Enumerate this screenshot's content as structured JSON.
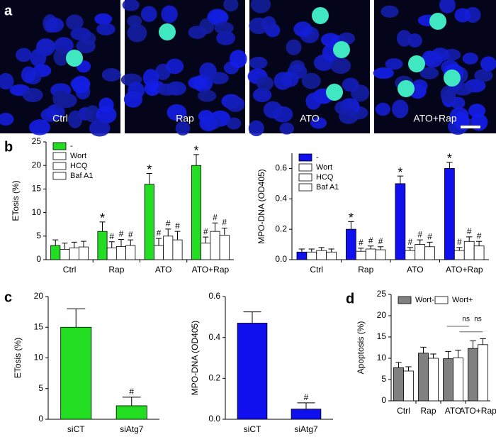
{
  "figure_a": {
    "panel": "a",
    "images": [
      "Ctrl",
      "Rap",
      "ATO",
      "ATO+Rap"
    ]
  },
  "chart_data": [
    {
      "type": "bar",
      "panel": "b",
      "ylabel": "ETosis (%)",
      "categories": [
        "Ctrl",
        "Rap",
        "ATO",
        "ATO+Rap"
      ],
      "ylim": [
        0,
        25
      ],
      "yticks": [
        0,
        5,
        10,
        15,
        20,
        25
      ],
      "legend": "top-left",
      "series": [
        {
          "name": "-",
          "color": "#22dd22",
          "values": [
            3,
            6,
            16,
            20
          ],
          "errors": [
            1.2,
            2,
            2.3,
            2.3
          ],
          "markers": [
            null,
            "*",
            "*",
            "*"
          ]
        },
        {
          "name": "Wort",
          "color": "#ffffff",
          "values": [
            2.2,
            2.5,
            3,
            3.5
          ],
          "errors": [
            1.3,
            1.3,
            1.5,
            1.3
          ],
          "markers": [
            null,
            "#",
            "#",
            "#"
          ]
        },
        {
          "name": "HCQ",
          "color": "#ffffff",
          "values": [
            2.5,
            2.8,
            5,
            6
          ],
          "errors": [
            1.2,
            1.5,
            1.5,
            1.8
          ],
          "markers": [
            null,
            "#",
            "#",
            "#"
          ]
        },
        {
          "name": "Baf A1",
          "color": "#ffffff",
          "values": [
            2.7,
            3,
            4.2,
            5.2
          ],
          "errors": [
            1.2,
            1.2,
            1.8,
            1.5
          ],
          "markers": [
            null,
            "#",
            "#",
            "#"
          ]
        }
      ]
    },
    {
      "type": "bar",
      "ylabel": "MPO-DNA (OD405)",
      "categories": [
        "Ctrl",
        "Rap",
        "ATO",
        "ATO+Rap"
      ],
      "ylim": [
        0,
        0.7
      ],
      "yticks": [
        {
          "value": 0,
          "label": "0.0"
        },
        0.2,
        0.4,
        0.6
      ],
      "legend": "top-left",
      "series": [
        {
          "name": "-",
          "color": "#1010ee",
          "values": [
            0.05,
            0.2,
            0.5,
            0.6
          ],
          "errors": [
            0.02,
            0.05,
            0.05,
            0.04
          ],
          "markers": [
            null,
            "*",
            "*",
            "*"
          ]
        },
        {
          "name": "Wort",
          "color": "#ffffff",
          "values": [
            0.05,
            0.055,
            0.06,
            0.06
          ],
          "errors": [
            0.02,
            0.02,
            0.02,
            0.02
          ],
          "markers": [
            null,
            "#",
            "#",
            "#"
          ]
        },
        {
          "name": "HCQ",
          "color": "#ffffff",
          "values": [
            0.06,
            0.07,
            0.1,
            0.12
          ],
          "errors": [
            0.02,
            0.02,
            0.03,
            0.03
          ],
          "markers": [
            null,
            "#",
            "#",
            "#"
          ]
        },
        {
          "name": "Baf A1",
          "color": "#ffffff",
          "values": [
            0.05,
            0.065,
            0.085,
            0.09
          ],
          "errors": [
            0.02,
            0.02,
            0.03,
            0.03
          ],
          "markers": [
            null,
            "#",
            "#",
            "#"
          ]
        }
      ]
    },
    {
      "type": "bar",
      "panel": "c",
      "ylabel": "ETosis (%)",
      "categories": [
        "siCT",
        "siAtg7"
      ],
      "ylim": [
        0,
        20
      ],
      "yticks": [
        0,
        5,
        10,
        15,
        20
      ],
      "series": [
        {
          "color": "#22dd22",
          "values": [
            15,
            2.2
          ],
          "errors": [
            3,
            1.4
          ],
          "markers": [
            null,
            "#"
          ]
        }
      ]
    },
    {
      "type": "bar",
      "ylabel": "MPO-DNA (OD405)",
      "categories": [
        "siCT",
        "siAtg7"
      ],
      "ylim": [
        0,
        0.6
      ],
      "yticks": [
        {
          "value": 0,
          "label": "0.0"
        },
        0.2,
        0.4,
        0.6
      ],
      "series": [
        {
          "color": "#1010ee",
          "values": [
            0.47,
            0.05
          ],
          "errors": [
            0.055,
            0.03
          ],
          "markers": [
            null,
            "#"
          ]
        }
      ]
    },
    {
      "type": "bar",
      "panel": "d",
      "ylabel": "Apoptosis (%)",
      "categories": [
        "Ctrl",
        "Rap",
        "ATO",
        "ATO+Rap"
      ],
      "ylim": [
        0,
        25
      ],
      "yticks": [
        0,
        5,
        10,
        15,
        20,
        25
      ],
      "legend": "top-left",
      "annotations": [
        "ns",
        "ns"
      ],
      "series": [
        {
          "name": "Wort-",
          "color": "#808080",
          "values": [
            7.8,
            11.2,
            9.9,
            12.3
          ],
          "errors": [
            1.2,
            1.4,
            1.7,
            1.8
          ]
        },
        {
          "name": "Wort+",
          "color": "#ffffff",
          "values": [
            7,
            10,
            10.1,
            13.2
          ],
          "errors": [
            1,
            1,
            1.8,
            1.4
          ]
        }
      ]
    }
  ]
}
